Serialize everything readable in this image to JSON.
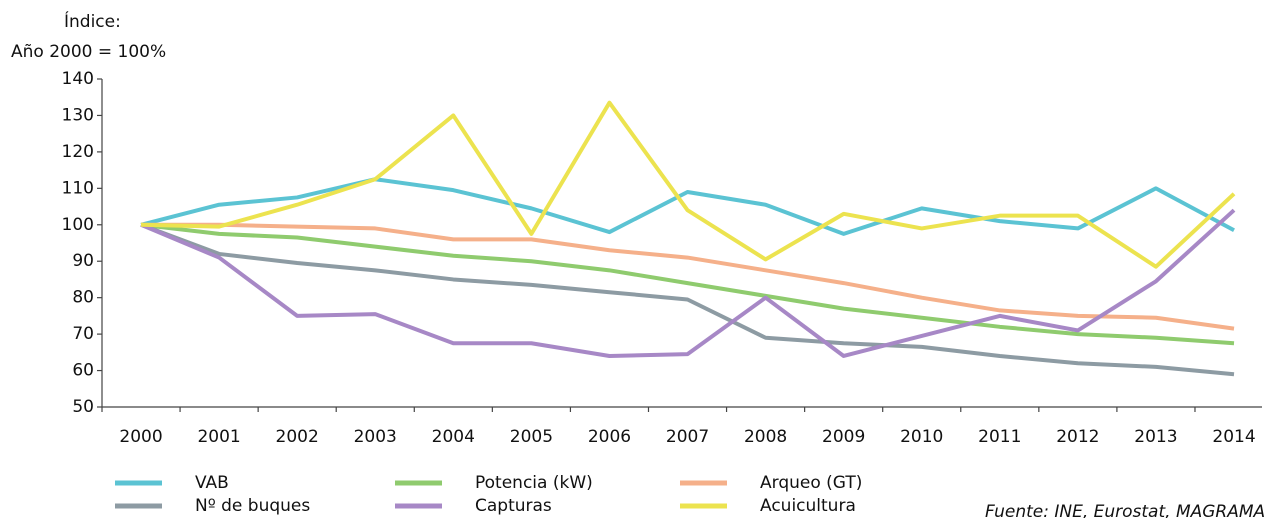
{
  "chart_data": {
    "type": "line",
    "y_label_lines": [
      "Índice:",
      "Año 2000 = 100%"
    ],
    "source": "Fuente: INE, Eurostat, MAGRAMA",
    "categories": [
      "2000",
      "2001",
      "2002",
      "2003",
      "2004",
      "2005",
      "2006",
      "2007",
      "2008",
      "2009",
      "2010",
      "2011",
      "2012",
      "2013",
      "2014"
    ],
    "ylim": [
      50,
      140
    ],
    "yticks": [
      50,
      60,
      70,
      80,
      90,
      100,
      110,
      120,
      130,
      140
    ],
    "series": [
      {
        "name": "VAB",
        "color": "#5bc3d3",
        "values": [
          100,
          105.5,
          107.5,
          112.5,
          109.5,
          104.5,
          98,
          109,
          105.5,
          97.5,
          104.5,
          101,
          99,
          110,
          98.5
        ]
      },
      {
        "name": "Potencia (kW)",
        "color": "#8fcb6e",
        "values": [
          100,
          97.5,
          96.5,
          94,
          91.5,
          90,
          87.5,
          84,
          80.5,
          77,
          74.5,
          72,
          70,
          69,
          67.5
        ]
      },
      {
        "name": "Arqueo (GT)",
        "color": "#f5b08a",
        "values": [
          100,
          100,
          99.5,
          99,
          96,
          96,
          93,
          91,
          87.5,
          84,
          80,
          76.5,
          75,
          74.5,
          71.5
        ]
      },
      {
        "name": "Nº de buques",
        "color": "#8d9ba3",
        "values": [
          100,
          92,
          89.5,
          87.5,
          85,
          83.5,
          81.5,
          79.5,
          69,
          67.5,
          66.5,
          64,
          62,
          61,
          59
        ]
      },
      {
        "name": "Capturas",
        "color": "#a788c6",
        "values": [
          100,
          91,
          75,
          75.5,
          67.5,
          67.5,
          64,
          64.5,
          80,
          64,
          69.5,
          75,
          71,
          84.5,
          104
        ]
      },
      {
        "name": "Acuicultura",
        "color": "#ece34f",
        "values": [
          100,
          99.5,
          105.5,
          112.5,
          130,
          97.5,
          133.5,
          104,
          90.5,
          103,
          99,
          102.5,
          102.5,
          88.5,
          108.5
        ]
      }
    ]
  }
}
